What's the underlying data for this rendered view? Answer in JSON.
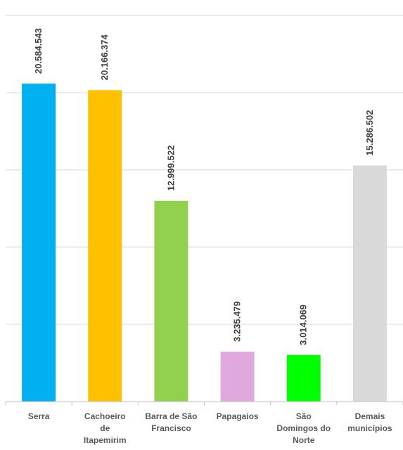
{
  "chart_data": {
    "type": "bar",
    "categories": [
      [
        "Serra"
      ],
      [
        "Cachoeiro",
        "de",
        "Itapemirim"
      ],
      [
        "Barra de São",
        "Francisco"
      ],
      [
        "Papagaios"
      ],
      [
        "São",
        "Domingos do",
        "Norte"
      ],
      [
        "Demais",
        "municípios"
      ]
    ],
    "values": [
      20584543,
      20166374,
      12999522,
      3235479,
      3014069,
      15286502
    ],
    "value_labels": [
      "20.584.543",
      "20.166.374",
      "12.999.522",
      "3.235.479",
      "3.014.069",
      "15.286.502"
    ],
    "colors": [
      "#00B0F0",
      "#FFC000",
      "#92D050",
      "#E0A8DC",
      "#00FF00",
      "#D9D9D9"
    ],
    "ylim": [
      0,
      25000000
    ],
    "gridlines": true,
    "title": "",
    "xlabel": "",
    "ylabel": ""
  }
}
